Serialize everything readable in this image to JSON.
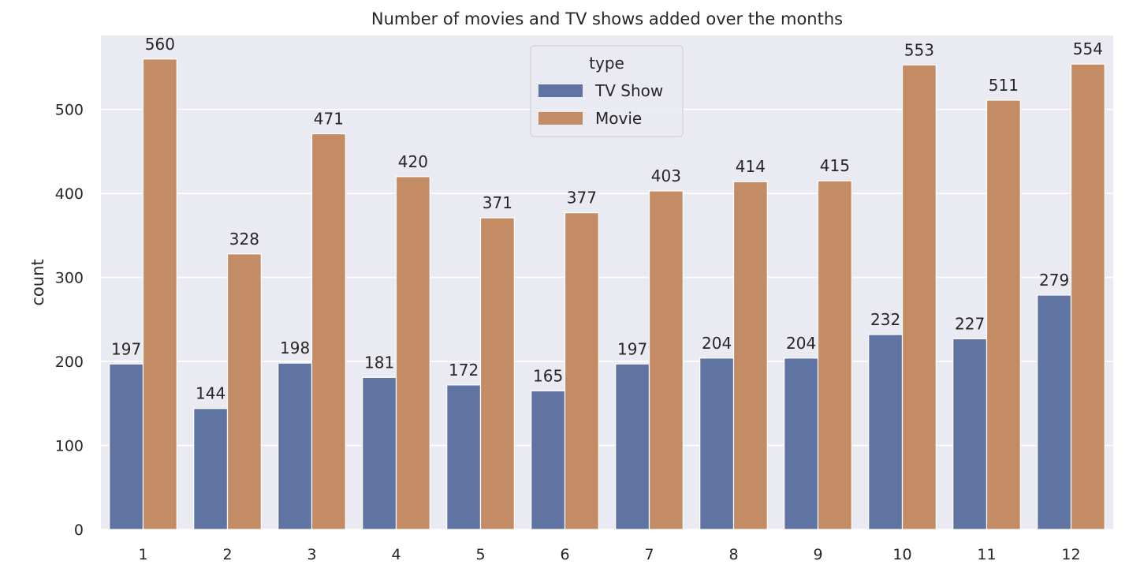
{
  "chart_data": {
    "type": "bar",
    "title": "Number of movies and TV shows added over the months",
    "xlabel": "",
    "ylabel": "count",
    "categories": [
      "1",
      "2",
      "3",
      "4",
      "5",
      "6",
      "7",
      "8",
      "9",
      "10",
      "11",
      "12"
    ],
    "series": [
      {
        "name": "TV Show",
        "color": "#5f74a3",
        "values": [
          197,
          144,
          198,
          181,
          172,
          165,
          197,
          204,
          204,
          232,
          227,
          279
        ]
      },
      {
        "name": "Movie",
        "color": "#c48c64",
        "values": [
          560,
          328,
          471,
          420,
          371,
          377,
          403,
          414,
          415,
          553,
          511,
          554
        ]
      }
    ],
    "ylim": [
      0,
      588
    ],
    "yticks": [
      0,
      100,
      200,
      300,
      400,
      500
    ],
    "grid": true,
    "legend": {
      "title": "type",
      "position": "upper-center"
    },
    "colors": {
      "background": "#eaeaf2",
      "grid": "#ffffff"
    }
  }
}
